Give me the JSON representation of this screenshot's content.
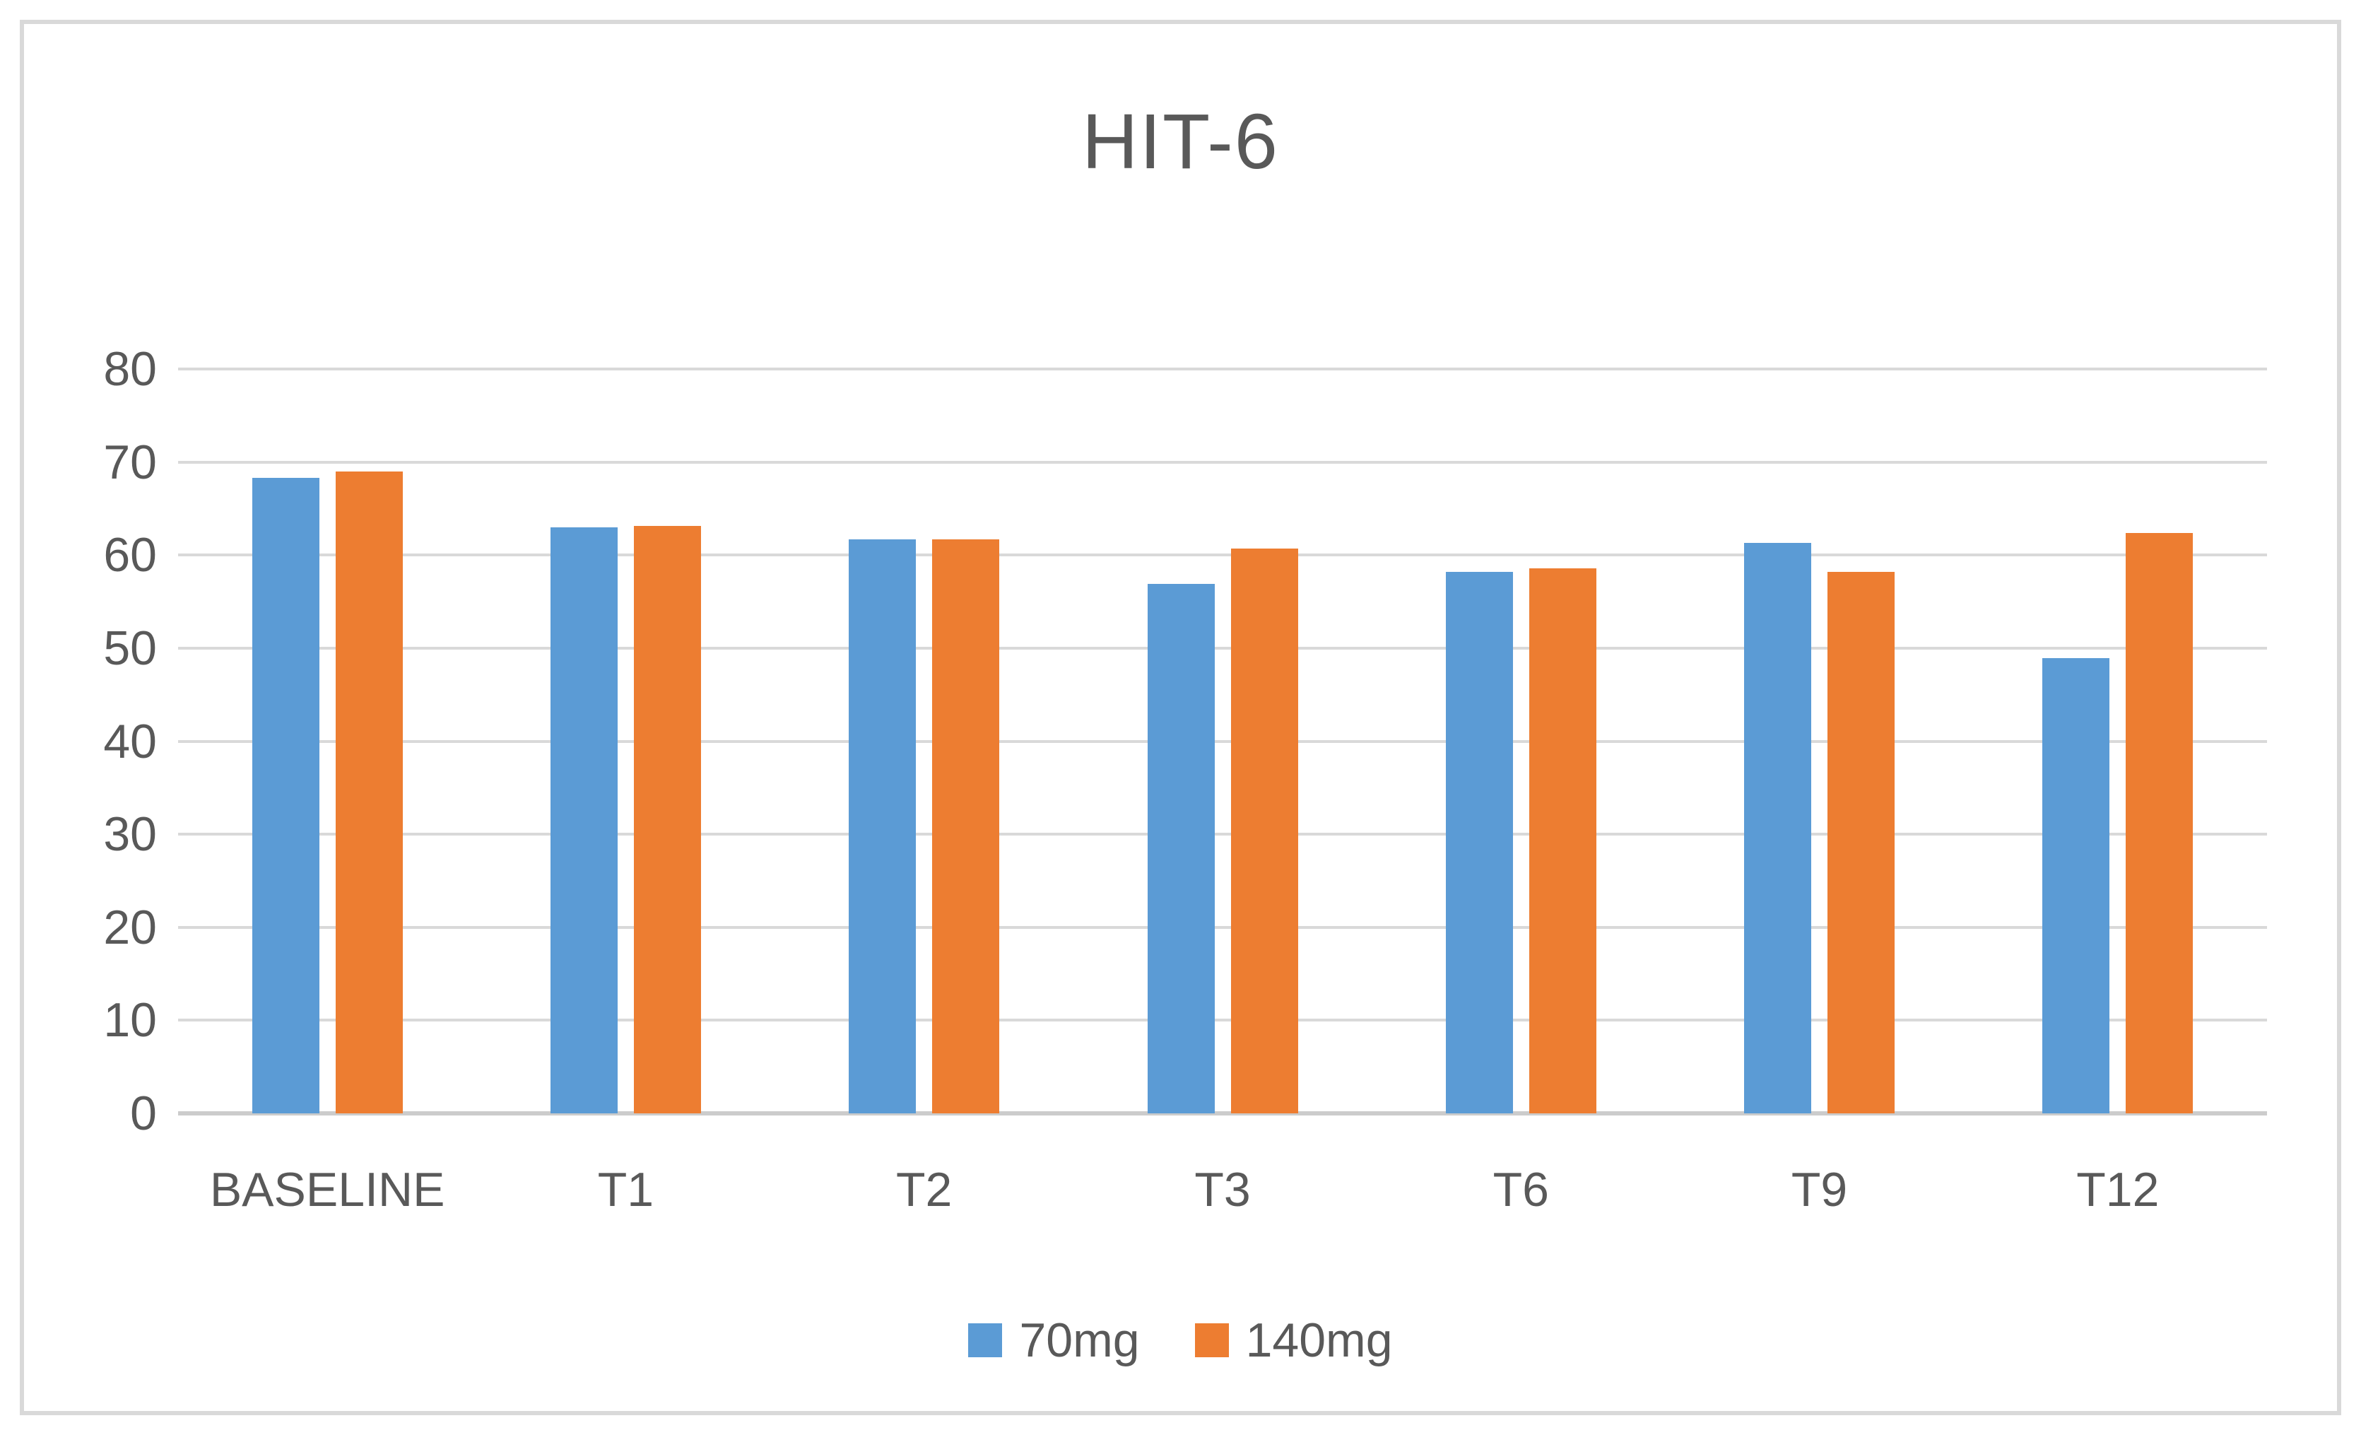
{
  "colors": {
    "series_70mg": "#5B9BD5",
    "series_140mg": "#ED7D31",
    "text": "#595959",
    "gridline": "#d9d9d9",
    "axis_line": "#cccccc",
    "figure_border": "#d9d9d9",
    "background": "#ffffff"
  },
  "chart_data": {
    "type": "bar",
    "title": "HIT-6",
    "xlabel": "",
    "ylabel": "",
    "categories": [
      "BASELINE",
      "T1",
      "T2",
      "T3",
      "T6",
      "T9",
      "T12"
    ],
    "series": [
      {
        "name": "70mg",
        "color": "#5B9BD5",
        "values": [
          68.3,
          63.0,
          61.7,
          56.9,
          58.2,
          61.3,
          48.9
        ]
      },
      {
        "name": "140mg",
        "color": "#ED7D31",
        "values": [
          69.0,
          63.1,
          61.7,
          60.7,
          58.6,
          58.2,
          62.4
        ]
      }
    ],
    "ylim": [
      0,
      80
    ],
    "yticks": [
      0,
      10,
      20,
      30,
      40,
      50,
      60,
      70,
      80
    ],
    "grid": true,
    "legend_position": "bottom"
  }
}
